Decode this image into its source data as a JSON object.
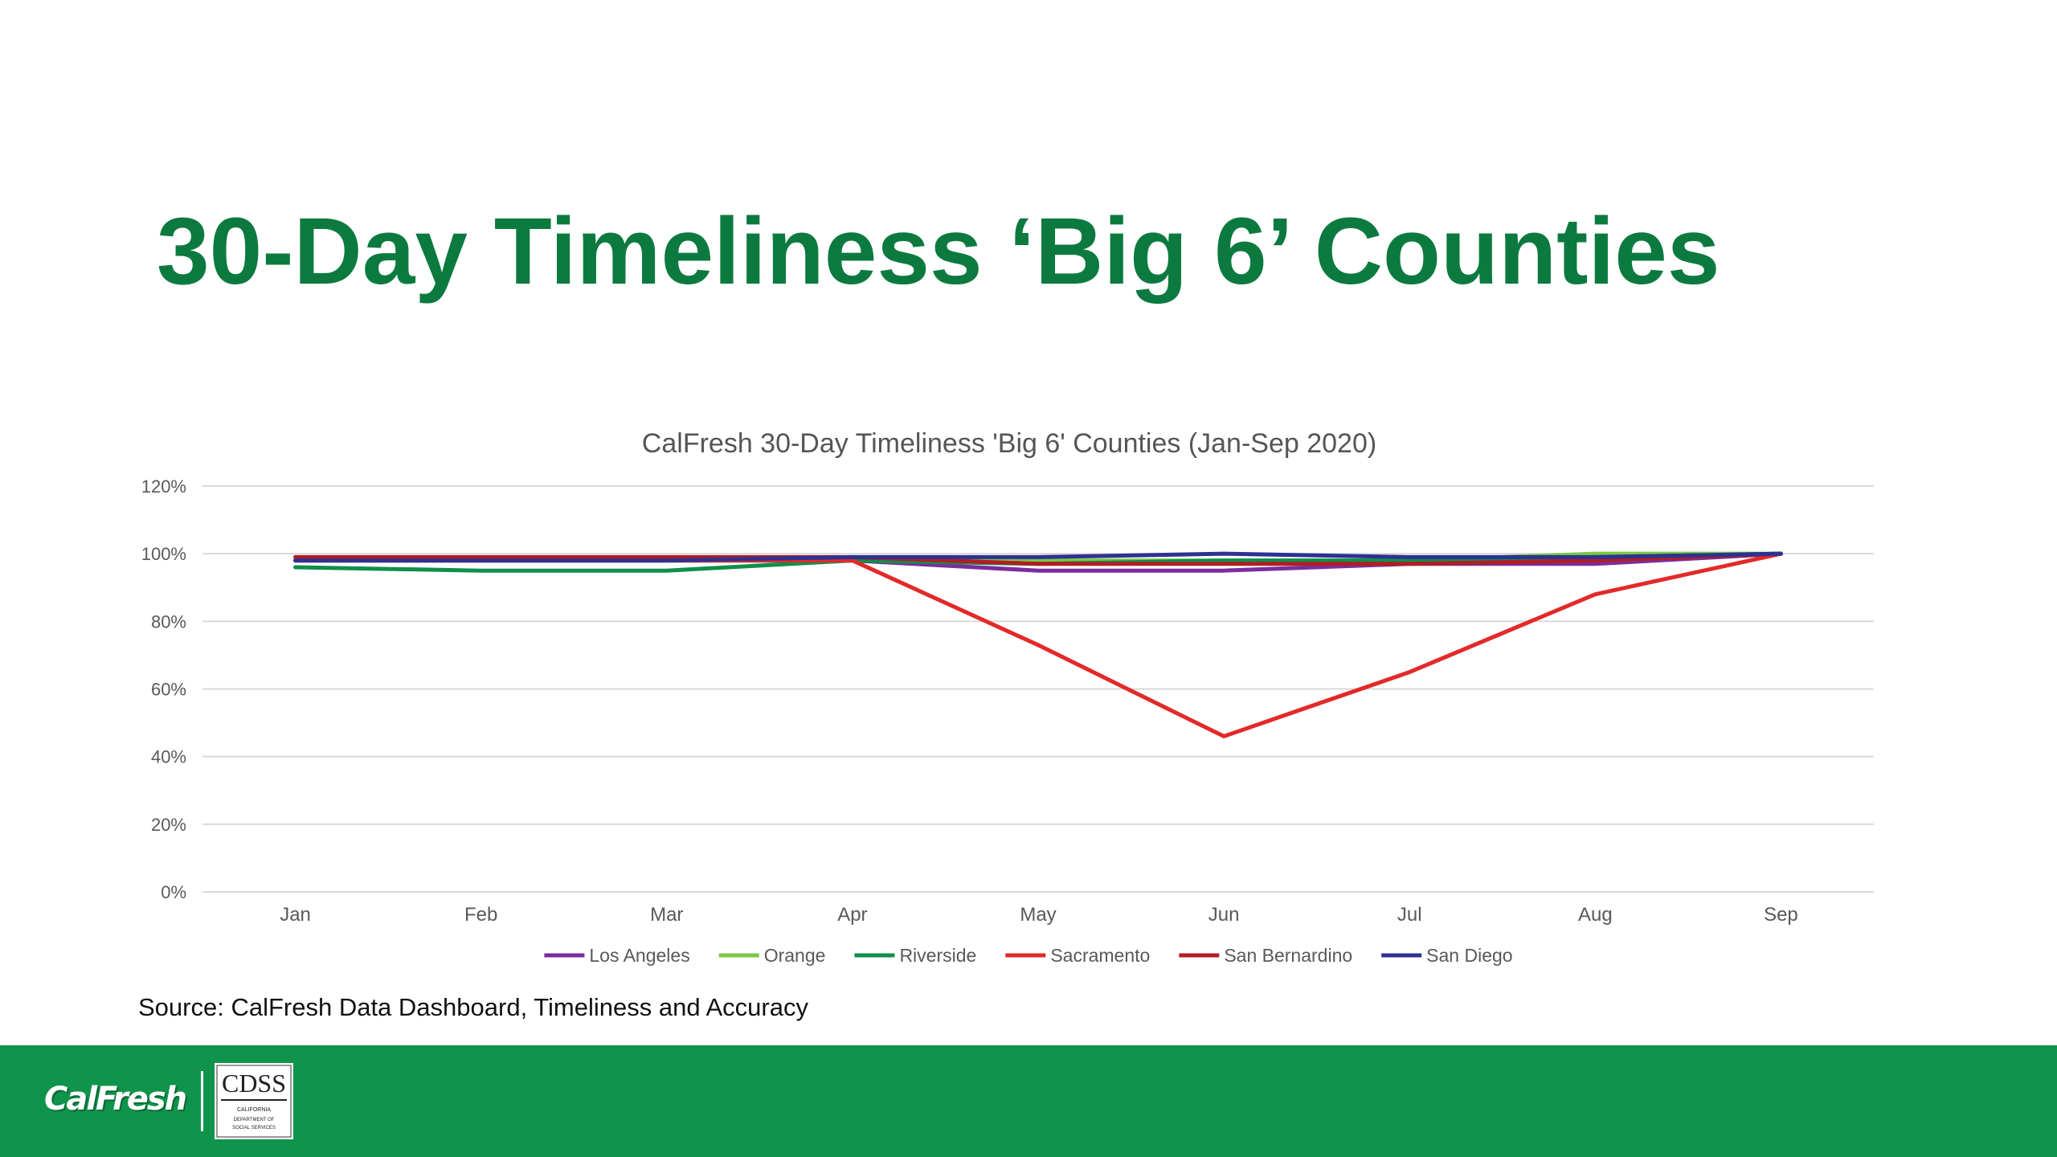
{
  "slide": {
    "title": "30-Day Timeliness ‘Big 6’ Counties",
    "source": "Source: CalFresh Data Dashboard, Timeliness and Accuracy"
  },
  "footer": {
    "calfresh_logo_text": "CalFresh",
    "cdss_logo_text": "CDSS",
    "cdss_logo_subtext": "CALIFORNIA DEPARTMENT OF SOCIAL SERVICES",
    "background_color": "#10934b"
  },
  "colors": {
    "title": "#0c7a3f"
  },
  "chart_data": {
    "type": "line",
    "title": "CalFresh 30-Day Timeliness 'Big 6' Counties (Jan-Sep 2020)",
    "xlabel": "",
    "ylabel": "",
    "categories": [
      "Jan",
      "Feb",
      "Mar",
      "Apr",
      "May",
      "Jun",
      "Jul",
      "Aug",
      "Sep"
    ],
    "ylim": [
      0,
      120
    ],
    "yticks": [
      0,
      20,
      40,
      60,
      80,
      100,
      120
    ],
    "ytick_labels": [
      "0%",
      "20%",
      "40%",
      "60%",
      "80%",
      "100%",
      "120%"
    ],
    "grid": true,
    "legend_position": "bottom",
    "series": [
      {
        "name": "Los Angeles",
        "color": "#7b2d9e",
        "values": [
          98,
          98,
          98,
          98,
          95,
          95,
          97,
          97,
          100
        ]
      },
      {
        "name": "Orange",
        "color": "#7ac943",
        "values": [
          98,
          98,
          98,
          98,
          98,
          98,
          98,
          100,
          100
        ]
      },
      {
        "name": "Riverside",
        "color": "#0f8f4a",
        "values": [
          96,
          95,
          95,
          98,
          97,
          98,
          98,
          99,
          100
        ]
      },
      {
        "name": "Sacramento",
        "color": "#e32929",
        "values": [
          98,
          98,
          98,
          98,
          73,
          46,
          65,
          88,
          100
        ]
      },
      {
        "name": "San Bernardino",
        "color": "#b01e23",
        "values": [
          99,
          99,
          99,
          99,
          97,
          97,
          97,
          98,
          100
        ]
      },
      {
        "name": "San Diego",
        "color": "#2e3192",
        "values": [
          98,
          98,
          98,
          99,
          99,
          100,
          99,
          99,
          100
        ]
      }
    ]
  }
}
